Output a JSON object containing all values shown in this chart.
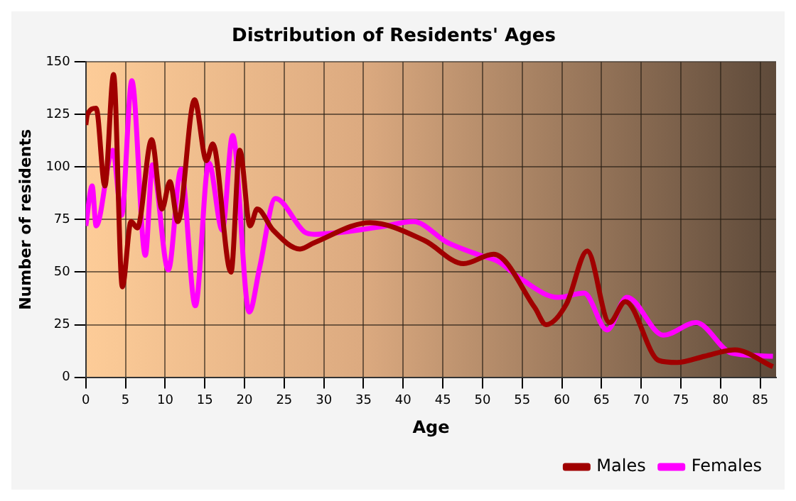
{
  "chart_data": {
    "type": "line",
    "title": "Distribution of Residents' Ages",
    "xlabel": "Age",
    "ylabel": "Number of residents",
    "xlim": [
      0,
      87
    ],
    "xticks": [
      0,
      5,
      10,
      15,
      20,
      25,
      30,
      35,
      40,
      45,
      50,
      55,
      60,
      65,
      70,
      75,
      80,
      85
    ],
    "ylim": [
      0,
      150
    ],
    "yticks": [
      0,
      25,
      50,
      75,
      100,
      125,
      150
    ],
    "grid": true,
    "legend": "bottom right",
    "marker": "none",
    "series": [
      {
        "name": "Males",
        "color": "#a00000",
        "x": [
          0,
          0.2,
          1.3,
          2.4,
          3.5,
          4.6,
          5.7,
          6.5,
          8.3,
          9.6,
          10.6,
          11.6,
          13.7,
          15.2,
          16,
          18.3,
          19.4,
          20.7,
          21.6,
          23.6,
          27,
          28.8,
          35.8,
          42.7,
          47.6,
          51.4,
          56.6,
          58,
          60.6,
          63.2,
          66,
          68,
          72.2,
          74.5,
          78,
          81.8,
          86.6
        ],
        "values": [
          120,
          125,
          128,
          91,
          144,
          43,
          74,
          71,
          113,
          80,
          93,
          74,
          132,
          103,
          111,
          50,
          108,
          72,
          80,
          70,
          61,
          64,
          73.5,
          65,
          54,
          58.5,
          33,
          25,
          35,
          60,
          26,
          36,
          8,
          7,
          10,
          13,
          5
        ]
      },
      {
        "name": "Females",
        "color": "#ff00ff",
        "x": [
          0,
          0.8,
          1.3,
          3.4,
          4.5,
          5.8,
          7.5,
          8.4,
          10.4,
          12,
          13.8,
          15.5,
          17.2,
          18.5,
          20.6,
          21.9,
          23.9,
          27.6,
          28.8,
          36.9,
          41.3,
          45.6,
          49.7,
          52,
          54.9,
          59.5,
          62.8,
          65.7,
          68.2,
          72.8,
          76.9,
          81.4,
          86.6
        ],
        "values": [
          72,
          91,
          72,
          108,
          77,
          141,
          58,
          101,
          51,
          99,
          34,
          102,
          70,
          115,
          31,
          52,
          85,
          69,
          68,
          71.4,
          74,
          64,
          58,
          55,
          46.6,
          38,
          40,
          22.5,
          38,
          20,
          26,
          11.5,
          10
        ]
      }
    ]
  }
}
